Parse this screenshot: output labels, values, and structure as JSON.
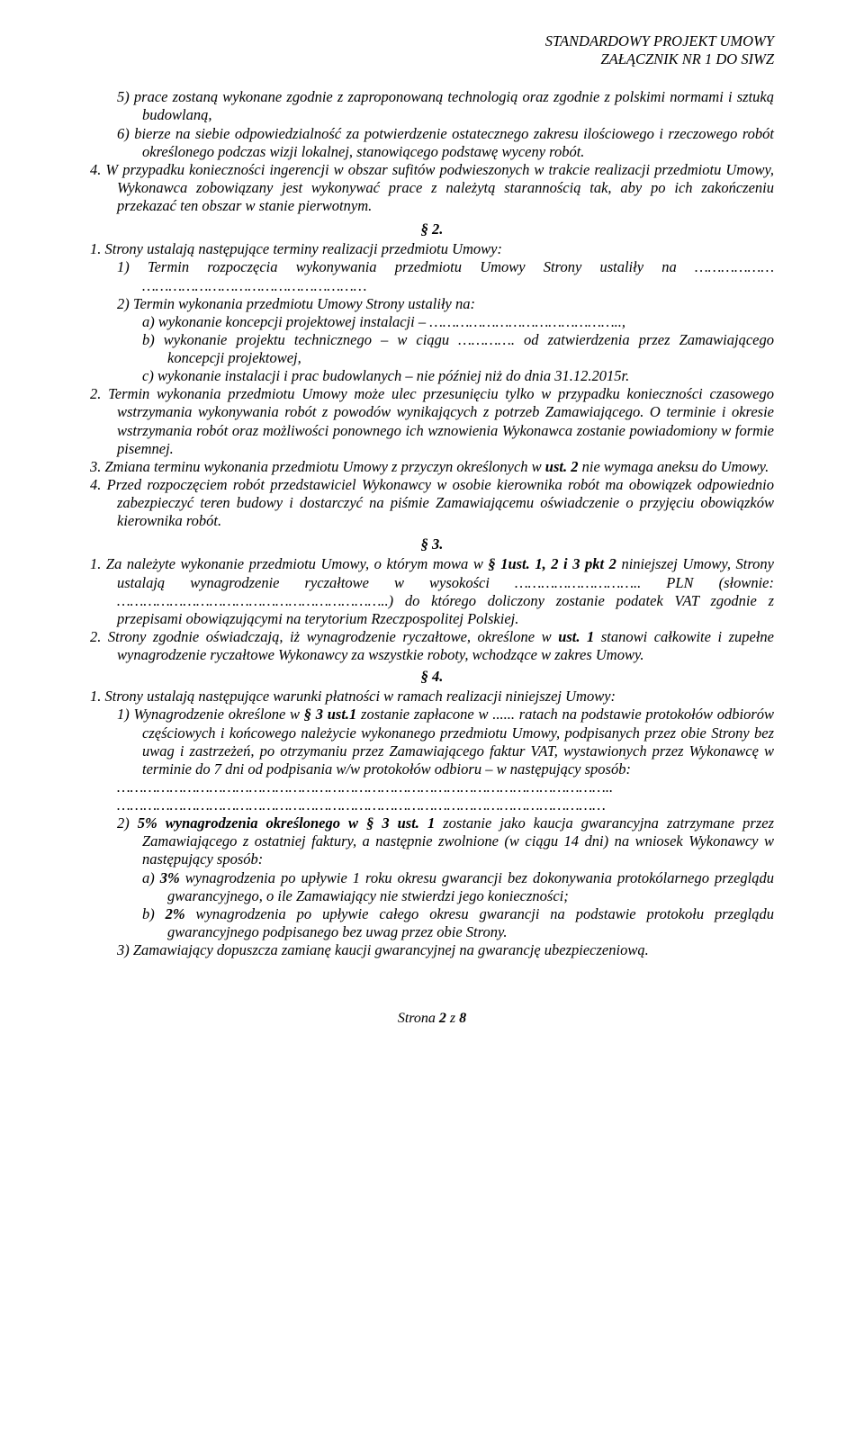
{
  "header": {
    "line1": "STANDARDOWY PROJEKT UMOWY",
    "line2": "ZAŁĄCZNIK NR 1 DO SIWZ"
  },
  "pre": {
    "i5": "5)  prace zostaną wykonane zgodnie z zaproponowaną technologią oraz zgodnie z polskimi normami i sztuką budowlaną,",
    "i6": "6)  bierze na siebie odpowiedzialność za potwierdzenie ostatecznego zakresu ilościowego i rzeczowego robót określonego podczas wizji lokalnej, stanowiącego podstawę wyceny robót.",
    "n4": "4.  W przypadku konieczności ingerencji w obszar sufitów podwieszonych w trakcie realizacji przedmiotu Umowy, Wykonawca zobowiązany jest wykonywać prace z należytą starannością tak, aby po ich zakończeniu przekazać ten obszar w stanie pierwotnym."
  },
  "s2": {
    "title": "§ 2.",
    "n1": "1.  Strony ustalają następujące terminy realizacji przedmiotu Umowy:",
    "n1_1": "1)  Termin rozpoczęcia wykonywania przedmiotu Umowy Strony ustaliły na ……………… ……………………………………………",
    "n1_2": "2)  Termin wykonania przedmiotu Umowy Strony ustaliły na:",
    "n1_2a": "a)  wykonanie koncepcji projektowej instalacji – ……………………………………..,",
    "n1_2b": "b)  wykonanie projektu technicznego – w ciągu …………. od zatwierdzenia przez Zamawiającego koncepcji projektowej,",
    "n1_2c": "c)  wykonanie instalacji i prac budowlanych – nie później niż do dnia 31.12.2015r.",
    "n2a": "2.  Termin wykonania przedmiotu Umowy może ulec przesunięciu tylko w przypadku konieczności czasowego wstrzymania wykonywania robót z powodów wynikających z potrzeb Zamawiającego. O terminie i okresie wstrzymania robót oraz możliwości ponownego ich wznowienia Wykonawca zostanie powiadomiony w formie pisemnej.",
    "n3a": "3.  Zmiana terminu wykonania przedmiotu Umowy z przyczyn określonych w ",
    "n3b": "ust. 2",
    "n3c": " nie wymaga aneksu do Umowy.",
    "n4": "4.  Przed rozpoczęciem robót przedstawiciel Wykonawcy w osobie kierownika robót ma obowiązek odpowiednio zabezpieczyć teren budowy i dostarczyć na piśmie Zamawiającemu oświadczenie o przyjęciu obowiązków kierownika robót."
  },
  "s3": {
    "title": "§ 3.",
    "n1a": "1.  Za należyte wykonanie przedmiotu Umowy, o którym mowa w ",
    "n1b": "§ 1ust. 1, 2 i 3 pkt 2",
    "n1c": " niniejszej Umowy, Strony ustalają wynagrodzenie ryczałtowe w wysokości ……………………….. PLN (słownie: ……………………………………………………..) do którego doliczony zostanie podatek VAT zgodnie z przepisami obowiązującymi na terytorium Rzeczpospolitej Polskiej.",
    "n2a": "2.  Strony zgodnie oświadczają, iż wynagrodzenie ryczałtowe, określone w ",
    "n2b": "ust. 1",
    "n2c": " stanowi całkowite i zupełne wynagrodzenie ryczałtowe Wykonawcy za wszystkie roboty, wchodzące w zakres Umowy."
  },
  "s4": {
    "title": "§ 4.",
    "n1": "1.   Strony ustalają następujące warunki płatności w ramach realizacji niniejszej Umowy:",
    "n1_1a": "1)  Wynagrodzenie określone w ",
    "n1_1b": "§ 3 ust.1",
    "n1_1c": " zostanie zapłacone w ...... ratach na podstawie protokołów odbiorów częściowych i końcowego należycie wykonanego przedmiotu Umowy, podpisanych przez obie Strony bez uwag i zastrzeżeń, po otrzymaniu przez Zamawiającego faktur VAT, wystawionych przez Wykonawcę w terminie do 7 dni od podpisania w/w protokołów odbioru – w następujący sposób:",
    "dots1": "…………………………………………………………………………………………………..",
    "dots2": "…………………………………………………………………………………………………",
    "n1_2a": "2)  ",
    "n1_2b": "5% wynagrodzenia określonego w § 3 ust. 1",
    "n1_2c": " zostanie jako kaucja gwarancyjna zatrzymane przez Zamawiającego z ostatniej faktury, a następnie zwolnione (w ciągu 14 dni) na wniosek Wykonawcy w następujący sposób:",
    "n1_2aa": "a)  ",
    "n1_2ab": "3%",
    "n1_2ac": " wynagrodzenia po upływie 1 roku okresu gwarancji bez dokonywania protokólarnego przeglądu gwarancyjnego, o ile Zamawiający nie stwierdzi jego konieczności;",
    "n1_2ba": "b)  ",
    "n1_2bb": "2%",
    "n1_2bc": " wynagrodzenia po upływie całego okresu gwarancji na podstawie protokołu przeglądu gwarancyjnego podpisanego bez uwag przez obie Strony.",
    "n1_3": "3)  Zamawiający dopuszcza zamianę kaucji gwarancyjnej na gwarancję ubezpieczeniową."
  },
  "footer": {
    "a": "Strona ",
    "b": "2",
    "c": " z ",
    "d": "8"
  }
}
